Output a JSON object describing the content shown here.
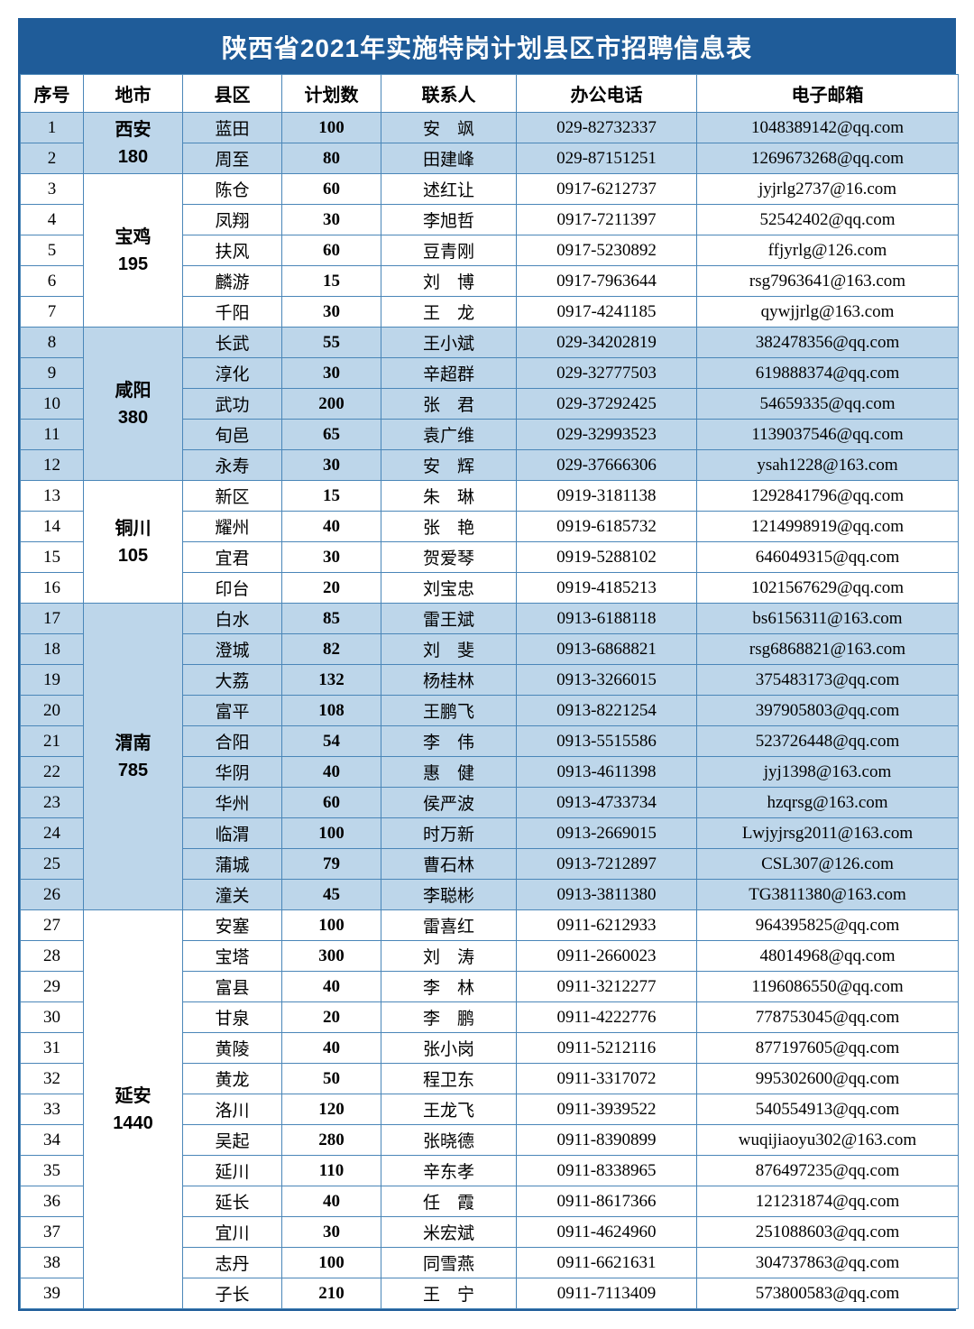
{
  "title": "陕西省2021年实施特岗计划县区市招聘信息表",
  "columns": [
    "序号",
    "地市",
    "县区",
    "计划数",
    "联系人",
    "办公电话",
    "电子邮箱"
  ],
  "groups": [
    {
      "city": "西安",
      "total": "180",
      "band": true,
      "rows": [
        {
          "seq": "1",
          "county": "蓝田",
          "plan": "100",
          "contact": "安　飒",
          "phone": "029-82732337",
          "email": "1048389142@qq.com"
        },
        {
          "seq": "2",
          "county": "周至",
          "plan": "80",
          "contact": "田建峰",
          "phone": "029-87151251",
          "email": "1269673268@qq.com"
        }
      ]
    },
    {
      "city": "宝鸡",
      "total": "195",
      "band": false,
      "rows": [
        {
          "seq": "3",
          "county": "陈仓",
          "plan": "60",
          "contact": "述红让",
          "phone": "0917-6212737",
          "email": "jyjrlg2737@16.com"
        },
        {
          "seq": "4",
          "county": "凤翔",
          "plan": "30",
          "contact": "李旭哲",
          "phone": "0917-7211397",
          "email": "52542402@qq.com"
        },
        {
          "seq": "5",
          "county": "扶风",
          "plan": "60",
          "contact": "豆青刚",
          "phone": "0917-5230892",
          "email": "ffjyrlg@126.com"
        },
        {
          "seq": "6",
          "county": "麟游",
          "plan": "15",
          "contact": "刘　博",
          "phone": "0917-7963644",
          "email": "rsg7963641@163.com"
        },
        {
          "seq": "7",
          "county": "千阳",
          "plan": "30",
          "contact": "王　龙",
          "phone": "0917-4241185",
          "email": "qywjjrlg@163.com"
        }
      ]
    },
    {
      "city": "咸阳",
      "total": "380",
      "band": true,
      "rows": [
        {
          "seq": "8",
          "county": "长武",
          "plan": "55",
          "contact": "王小斌",
          "phone": "029-34202819",
          "email": "382478356@qq.com"
        },
        {
          "seq": "9",
          "county": "淳化",
          "plan": "30",
          "contact": "辛超群",
          "phone": "029-32777503",
          "email": "619888374@qq.com"
        },
        {
          "seq": "10",
          "county": "武功",
          "plan": "200",
          "contact": "张　君",
          "phone": "029-37292425",
          "email": "54659335@qq.com"
        },
        {
          "seq": "11",
          "county": "旬邑",
          "plan": "65",
          "contact": "袁广维",
          "phone": "029-32993523",
          "email": "1139037546@qq.com"
        },
        {
          "seq": "12",
          "county": "永寿",
          "plan": "30",
          "contact": "安　辉",
          "phone": "029-37666306",
          "email": "ysah1228@163.com"
        }
      ]
    },
    {
      "city": "铜川",
      "total": "105",
      "band": false,
      "rows": [
        {
          "seq": "13",
          "county": "新区",
          "plan": "15",
          "contact": "朱　琳",
          "phone": "0919-3181138",
          "email": "1292841796@qq.com"
        },
        {
          "seq": "14",
          "county": "耀州",
          "plan": "40",
          "contact": "张　艳",
          "phone": "0919-6185732",
          "email": "1214998919@qq.com"
        },
        {
          "seq": "15",
          "county": "宜君",
          "plan": "30",
          "contact": "贺爱琴",
          "phone": "0919-5288102",
          "email": "646049315@qq.com"
        },
        {
          "seq": "16",
          "county": "印台",
          "plan": "20",
          "contact": "刘宝忠",
          "phone": "0919-4185213",
          "email": "1021567629@qq.com"
        }
      ]
    },
    {
      "city": "渭南",
      "total": "785",
      "band": true,
      "rows": [
        {
          "seq": "17",
          "county": "白水",
          "plan": "85",
          "contact": "雷王斌",
          "phone": "0913-6188118",
          "email": "bs6156311@163.com"
        },
        {
          "seq": "18",
          "county": "澄城",
          "plan": "82",
          "contact": "刘　斐",
          "phone": "0913-6868821",
          "email": "rsg6868821@163.com"
        },
        {
          "seq": "19",
          "county": "大荔",
          "plan": "132",
          "contact": "杨桂林",
          "phone": "0913-3266015",
          "email": "375483173@qq.com"
        },
        {
          "seq": "20",
          "county": "富平",
          "plan": "108",
          "contact": "王鹏飞",
          "phone": "0913-8221254",
          "email": "397905803@qq.com"
        },
        {
          "seq": "21",
          "county": "合阳",
          "plan": "54",
          "contact": "李　伟",
          "phone": "0913-5515586",
          "email": "523726448@qq.com"
        },
        {
          "seq": "22",
          "county": "华阴",
          "plan": "40",
          "contact": "惠　健",
          "phone": "0913-4611398",
          "email": "jyj1398@163.com"
        },
        {
          "seq": "23",
          "county": "华州",
          "plan": "60",
          "contact": "侯严波",
          "phone": "0913-4733734",
          "email": "hzqrsg@163.com"
        },
        {
          "seq": "24",
          "county": "临渭",
          "plan": "100",
          "contact": "时万新",
          "phone": "0913-2669015",
          "email": "Lwjyjrsg2011@163.com"
        },
        {
          "seq": "25",
          "county": "蒲城",
          "plan": "79",
          "contact": "曹石林",
          "phone": "0913-7212897",
          "email": "CSL307@126.com"
        },
        {
          "seq": "26",
          "county": "潼关",
          "plan": "45",
          "contact": "李聪彬",
          "phone": "0913-3811380",
          "email": "TG3811380@163.com"
        }
      ]
    },
    {
      "city": "延安",
      "total": "1440",
      "band": false,
      "rows": [
        {
          "seq": "27",
          "county": "安塞",
          "plan": "100",
          "contact": "雷喜红",
          "phone": "0911-6212933",
          "email": "964395825@qq.com"
        },
        {
          "seq": "28",
          "county": "宝塔",
          "plan": "300",
          "contact": "刘　涛",
          "phone": "0911-2660023",
          "email": "48014968@qq.com"
        },
        {
          "seq": "29",
          "county": "富县",
          "plan": "40",
          "contact": "李　林",
          "phone": "0911-3212277",
          "email": "1196086550@qq.com"
        },
        {
          "seq": "30",
          "county": "甘泉",
          "plan": "20",
          "contact": "李　鹏",
          "phone": "0911-4222776",
          "email": "778753045@qq.com"
        },
        {
          "seq": "31",
          "county": "黄陵",
          "plan": "40",
          "contact": "张小岗",
          "phone": "0911-5212116",
          "email": "877197605@qq.com"
        },
        {
          "seq": "32",
          "county": "黄龙",
          "plan": "50",
          "contact": "程卫东",
          "phone": "0911-3317072",
          "email": "995302600@qq.com"
        },
        {
          "seq": "33",
          "county": "洛川",
          "plan": "120",
          "contact": "王龙飞",
          "phone": "0911-3939522",
          "email": "540554913@qq.com"
        },
        {
          "seq": "34",
          "county": "吴起",
          "plan": "280",
          "contact": "张晓德",
          "phone": "0911-8390899",
          "email": "wuqijiaoyu302@163.com"
        },
        {
          "seq": "35",
          "county": "延川",
          "plan": "110",
          "contact": "辛东孝",
          "phone": "0911-8338965",
          "email": "876497235@qq.com"
        },
        {
          "seq": "36",
          "county": "延长",
          "plan": "40",
          "contact": "任　霞",
          "phone": "0911-8617366",
          "email": "121231874@qq.com"
        },
        {
          "seq": "37",
          "county": "宜川",
          "plan": "30",
          "contact": "米宏斌",
          "phone": "0911-4624960",
          "email": "251088603@qq.com"
        },
        {
          "seq": "38",
          "county": "志丹",
          "plan": "100",
          "contact": "同雪燕",
          "phone": "0911-6621631",
          "email": "304737863@qq.com"
        },
        {
          "seq": "39",
          "county": "子长",
          "plan": "210",
          "contact": "王　宁",
          "phone": "0911-7113409",
          "email": "573800583@qq.com"
        }
      ]
    }
  ]
}
